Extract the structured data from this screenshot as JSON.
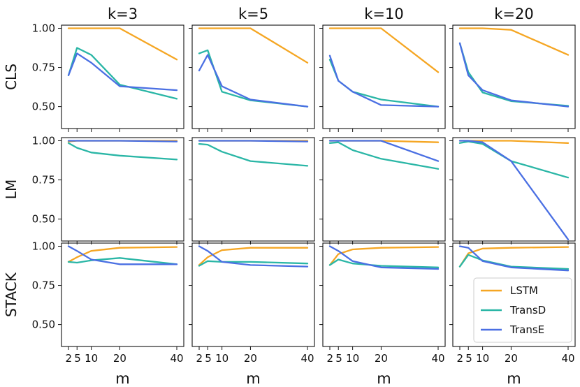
{
  "chart_data": {
    "type": "line",
    "layout": "3x4 grid of small multiples",
    "column_titles": [
      "k=3",
      "k=5",
      "k=10",
      "k=20"
    ],
    "row_labels": [
      "CLS",
      "LM",
      "STACK"
    ],
    "xlabel": "m",
    "x": [
      2,
      5,
      10,
      20,
      40
    ],
    "x_tick_labels": [
      "2",
      "5",
      "10",
      "20",
      "40"
    ],
    "y_ticks": [
      0.5,
      0.75,
      1.0
    ],
    "y_tick_labels": [
      "0.50",
      "0.75",
      "1.00"
    ],
    "ylim": [
      0.36,
      1.02
    ],
    "series_styles": [
      {
        "name": "LSTM",
        "color": "#F5A623"
      },
      {
        "name": "TransD",
        "color": "#2AB6A6"
      },
      {
        "name": "TransE",
        "color": "#4A6FE3"
      }
    ],
    "legend": {
      "location": "lower-right of STACK k=20 panel",
      "entries": [
        "LSTM",
        "TransD",
        "TransE"
      ]
    },
    "panels": [
      {
        "row": "CLS",
        "col": "k=3",
        "series": [
          {
            "name": "LSTM",
            "values": [
              1.0,
              1.0,
              1.0,
              1.0,
              0.8
            ]
          },
          {
            "name": "TransD",
            "values": [
              0.7,
              0.875,
              0.83,
              0.64,
              0.55
            ]
          },
          {
            "name": "TransE",
            "values": [
              0.7,
              0.84,
              0.78,
              0.63,
              0.605
            ]
          }
        ]
      },
      {
        "row": "CLS",
        "col": "k=5",
        "series": [
          {
            "name": "LSTM",
            "values": [
              1.0,
              1.0,
              1.0,
              1.0,
              0.78
            ]
          },
          {
            "name": "TransD",
            "values": [
              0.84,
              0.86,
              0.595,
              0.54,
              0.5
            ]
          },
          {
            "name": "TransE",
            "values": [
              0.73,
              0.83,
              0.63,
              0.545,
              0.5
            ]
          }
        ]
      },
      {
        "row": "CLS",
        "col": "k=10",
        "series": [
          {
            "name": "LSTM",
            "values": [
              1.0,
              1.0,
              1.0,
              1.0,
              0.72
            ]
          },
          {
            "name": "TransD",
            "values": [
              0.8,
              0.665,
              0.595,
              0.545,
              0.5
            ]
          },
          {
            "name": "TransE",
            "values": [
              0.825,
              0.665,
              0.595,
              0.51,
              0.5
            ]
          }
        ]
      },
      {
        "row": "CLS",
        "col": "k=20",
        "series": [
          {
            "name": "LSTM",
            "values": [
              1.0,
              1.0,
              1.0,
              0.99,
              0.83
            ]
          },
          {
            "name": "TransD",
            "values": [
              0.905,
              0.72,
              0.59,
              0.535,
              0.505
            ]
          },
          {
            "name": "TransE",
            "values": [
              0.905,
              0.7,
              0.605,
              0.54,
              0.5
            ]
          }
        ]
      },
      {
        "row": "LM",
        "col": "k=3",
        "series": [
          {
            "name": "LSTM",
            "values": [
              0.995,
              1.0,
              1.0,
              1.0,
              1.0
            ]
          },
          {
            "name": "TransD",
            "values": [
              0.985,
              0.955,
              0.925,
              0.905,
              0.88
            ]
          },
          {
            "name": "TransE",
            "values": [
              1.0,
              1.0,
              1.0,
              1.0,
              0.995
            ]
          }
        ]
      },
      {
        "row": "LM",
        "col": "k=5",
        "series": [
          {
            "name": "LSTM",
            "values": [
              1.0,
              1.0,
              1.0,
              1.0,
              1.0
            ]
          },
          {
            "name": "TransD",
            "values": [
              0.98,
              0.975,
              0.93,
              0.87,
              0.84
            ]
          },
          {
            "name": "TransE",
            "values": [
              1.0,
              1.0,
              1.0,
              1.0,
              0.995
            ]
          }
        ]
      },
      {
        "row": "LM",
        "col": "k=10",
        "series": [
          {
            "name": "LSTM",
            "values": [
              1.0,
              1.0,
              1.0,
              1.0,
              0.99
            ]
          },
          {
            "name": "TransD",
            "values": [
              0.985,
              0.99,
              0.94,
              0.885,
              0.82
            ]
          },
          {
            "name": "TransE",
            "values": [
              1.0,
              1.0,
              1.0,
              1.0,
              0.87
            ]
          }
        ]
      },
      {
        "row": "LM",
        "col": "k=20",
        "series": [
          {
            "name": "LSTM",
            "values": [
              1.0,
              1.0,
              1.0,
              1.0,
              0.985
            ]
          },
          {
            "name": "TransD",
            "values": [
              0.985,
              0.995,
              0.98,
              0.87,
              0.765
            ]
          },
          {
            "name": "TransE",
            "values": [
              1.0,
              1.0,
              0.99,
              0.87,
              0.37
            ]
          }
        ]
      },
      {
        "row": "STACK",
        "col": "k=3",
        "series": [
          {
            "name": "LSTM",
            "values": [
              0.9,
              0.93,
              0.97,
              0.99,
              0.995
            ]
          },
          {
            "name": "TransD",
            "values": [
              0.9,
              0.895,
              0.91,
              0.925,
              0.885
            ]
          },
          {
            "name": "TransE",
            "values": [
              1.0,
              0.97,
              0.915,
              0.885,
              0.885
            ]
          }
        ]
      },
      {
        "row": "STACK",
        "col": "k=5",
        "series": [
          {
            "name": "LSTM",
            "values": [
              0.88,
              0.93,
              0.975,
              0.99,
              0.99
            ]
          },
          {
            "name": "TransD",
            "values": [
              0.875,
              0.905,
              0.9,
              0.9,
              0.89
            ]
          },
          {
            "name": "TransE",
            "values": [
              1.0,
              0.97,
              0.9,
              0.88,
              0.87
            ]
          }
        ]
      },
      {
        "row": "STACK",
        "col": "k=10",
        "series": [
          {
            "name": "LSTM",
            "values": [
              0.88,
              0.95,
              0.98,
              0.99,
              0.995
            ]
          },
          {
            "name": "TransD",
            "values": [
              0.88,
              0.915,
              0.89,
              0.875,
              0.865
            ]
          },
          {
            "name": "TransE",
            "values": [
              1.0,
              0.97,
              0.905,
              0.865,
              0.855
            ]
          }
        ]
      },
      {
        "row": "STACK",
        "col": "k=20",
        "series": [
          {
            "name": "LSTM",
            "values": [
              0.87,
              0.955,
              0.985,
              0.99,
              0.995
            ]
          },
          {
            "name": "TransD",
            "values": [
              0.87,
              0.945,
              0.91,
              0.87,
              0.855
            ]
          },
          {
            "name": "TransE",
            "values": [
              1.0,
              0.99,
              0.905,
              0.865,
              0.845
            ]
          }
        ]
      }
    ]
  }
}
